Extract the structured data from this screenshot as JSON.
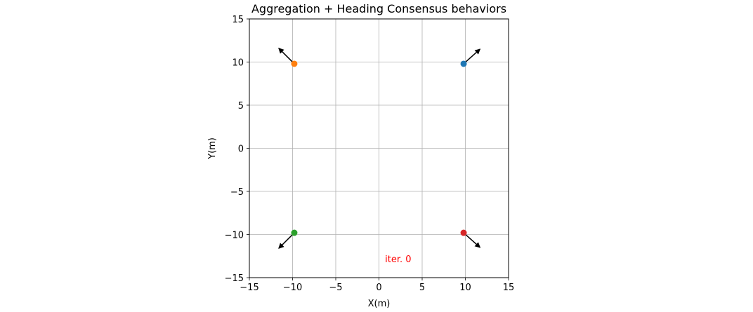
{
  "chart_data": {
    "type": "scatter",
    "title": "Aggregation + Heading Consensus behaviors",
    "xlabel": "X(m)",
    "ylabel": "Y(m)",
    "xlim": [
      -15,
      15
    ],
    "ylim": [
      -15,
      15
    ],
    "xticks": [
      -15,
      -10,
      -5,
      0,
      5,
      10,
      15
    ],
    "yticks": [
      -15,
      -10,
      -5,
      0,
      5,
      10,
      15
    ],
    "grid": true,
    "legend": "none",
    "points": [
      {
        "x": 9.8,
        "y": 9.8,
        "color": "#1f77b4",
        "heading_dx": 1.9,
        "heading_dy": 1.7
      },
      {
        "x": -9.8,
        "y": 9.8,
        "color": "#ff7f0e",
        "heading_dx": -1.8,
        "heading_dy": 1.8
      },
      {
        "x": -9.8,
        "y": -9.8,
        "color": "#2ca02c",
        "heading_dx": -1.8,
        "heading_dy": -1.8
      },
      {
        "x": 9.8,
        "y": -9.8,
        "color": "#d62728",
        "heading_dx": 1.9,
        "heading_dy": -1.7
      }
    ],
    "annotations": [
      {
        "text": "iter. 0",
        "x": 0.7,
        "y": -12.8,
        "color": "#ff0000"
      }
    ]
  }
}
